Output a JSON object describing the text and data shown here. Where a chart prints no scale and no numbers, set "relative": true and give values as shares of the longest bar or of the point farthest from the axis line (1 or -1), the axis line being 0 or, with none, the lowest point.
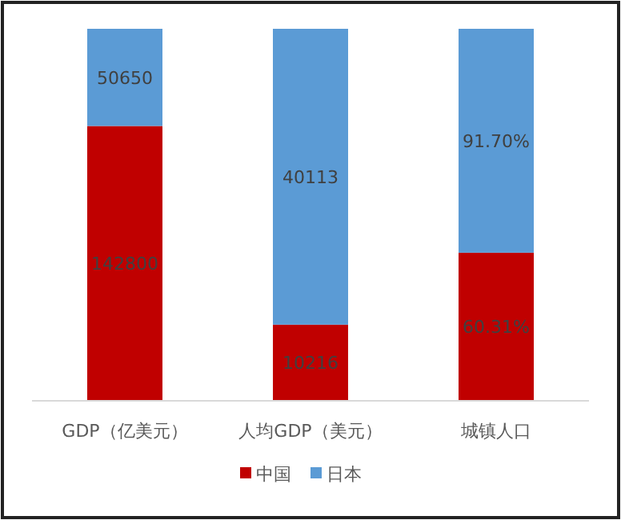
{
  "chart_data": {
    "type": "bar",
    "stacked": true,
    "relative": true,
    "legend": "bottom",
    "categories": [
      "GDP（亿美元）",
      "人均GDP（美元）",
      "城镇人口"
    ],
    "series": [
      {
        "name": "中国",
        "color": "#c00000",
        "values": [
          0.7382,
          0.203,
          0.3968
        ]
      },
      {
        "name": "日本",
        "color": "#5b9bd5",
        "values": [
          0.2618,
          0.797,
          0.6032
        ]
      }
    ],
    "annotations": [
      "142800",
      "10216",
      "60.31%",
      "50650",
      "40113",
      "91.70%"
    ]
  }
}
